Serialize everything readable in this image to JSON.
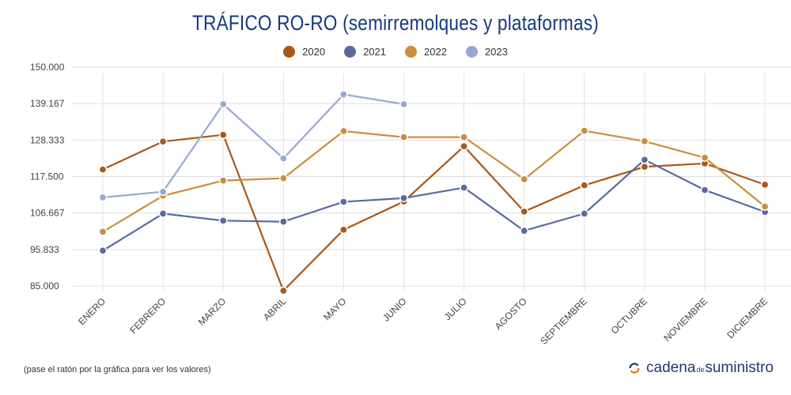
{
  "header": {
    "title": "TRÁFICO RO-RO (semirremolques y plataformas)"
  },
  "legend": [
    {
      "name": "2020",
      "color": "#a8581a"
    },
    {
      "name": "2021",
      "color": "#5a6aa0"
    },
    {
      "name": "2022",
      "color": "#c98f3e"
    },
    {
      "name": "2023",
      "color": "#98a9cf"
    }
  ],
  "footer": {
    "note": "(pase el ratón por la gráfica para ver los valores)",
    "brand_part1": "cadena",
    "brand_part2": "de",
    "brand_part3": "suministro"
  },
  "chart_data": {
    "type": "line",
    "title": "TRÁFICO RO-RO (semirremolques y plataformas)",
    "xlabel": "",
    "ylabel": "",
    "categories": [
      "ENERO",
      "FEBRERO",
      "MARZO",
      "ABRIL",
      "MAYO",
      "JUNIO",
      "JULIO",
      "AGOSTO",
      "SEPTIEMBRE",
      "OCTUBRE",
      "NOVIEMBRE",
      "DICIEMBRE"
    ],
    "yticks": [
      "85.000",
      "95.833",
      "106.667",
      "117.500",
      "128.333",
      "139.167",
      "150.000"
    ],
    "ylim": [
      85000,
      150000
    ],
    "grid": true,
    "legend_position": "top",
    "series": [
      {
        "name": "2020",
        "color": "#a8581a",
        "values": [
          119600,
          127900,
          129900,
          83600,
          101700,
          110100,
          126500,
          107100,
          114900,
          120400,
          121400,
          115100
        ]
      },
      {
        "name": "2021",
        "color": "#5a6aa0",
        "values": [
          95500,
          106500,
          104400,
          104100,
          110000,
          111100,
          114200,
          101400,
          106500,
          122500,
          113500,
          107000
        ]
      },
      {
        "name": "2022",
        "color": "#c98f3e",
        "values": [
          101100,
          111800,
          116300,
          117000,
          131000,
          129200,
          129200,
          116700,
          131100,
          128000,
          123100,
          108600
        ]
      },
      {
        "name": "2023",
        "color": "#98a9cf",
        "values": [
          111300,
          113000,
          139000,
          122900,
          141900,
          139000,
          null,
          null,
          null,
          null,
          null,
          null
        ]
      }
    ]
  }
}
